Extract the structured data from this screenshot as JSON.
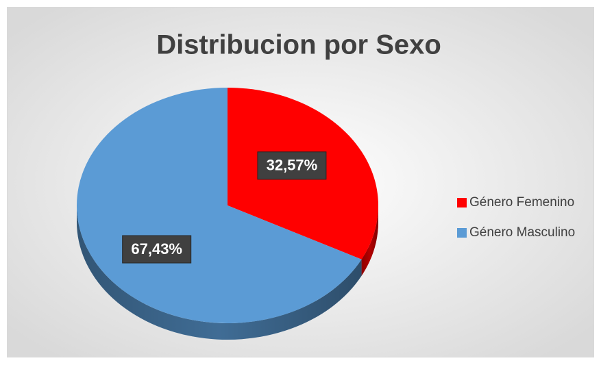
{
  "chart_data": {
    "type": "pie",
    "title": "Distribucion por Sexo",
    "categories": [
      "Género Femenino",
      "Género Masculino"
    ],
    "values": [
      32.57,
      67.43
    ],
    "value_labels": [
      "32,57%",
      "67,43%"
    ],
    "colors": [
      "#ff0000",
      "#5b9bd5"
    ],
    "legend": "right"
  }
}
